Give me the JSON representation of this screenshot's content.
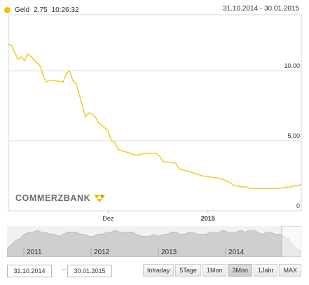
{
  "legend": {
    "series_label": "Geld",
    "value": "2.75",
    "time": "10:26:32",
    "color": "#f5c000"
  },
  "date_range_text": "31.10.2014 - 30.01.2015",
  "logo_text": "COMMERZBANK",
  "chart_data": {
    "type": "line",
    "title": "",
    "xlabel": "",
    "ylabel": "",
    "x_tick_labels": [
      "Dez",
      "2015"
    ],
    "y_tick_labels": [
      "0",
      "5,00",
      "10,00"
    ],
    "ylim": [
      0,
      14
    ],
    "grid": true,
    "series": [
      {
        "color": "#f5c000",
        "x": [
          "2014-10-31",
          "2014-11-01",
          "2014-11-03",
          "2014-11-04",
          "2014-11-05",
          "2014-11-06",
          "2014-11-07",
          "2014-11-10",
          "2014-11-11",
          "2014-11-12",
          "2014-11-13",
          "2014-11-14",
          "2014-11-17",
          "2014-11-18",
          "2014-11-19",
          "2014-11-20",
          "2014-11-21",
          "2014-11-24",
          "2014-11-25",
          "2014-11-26",
          "2014-11-27",
          "2014-11-28",
          "2014-12-01",
          "2014-12-02",
          "2014-12-03",
          "2014-12-04",
          "2014-12-05",
          "2014-12-08",
          "2014-12-09",
          "2014-12-10",
          "2014-12-11",
          "2014-12-12",
          "2014-12-15",
          "2014-12-16",
          "2014-12-17",
          "2014-12-18",
          "2014-12-19",
          "2014-12-22",
          "2014-12-23",
          "2014-12-29",
          "2014-12-30",
          "2015-01-02",
          "2015-01-05",
          "2015-01-06",
          "2015-01-07",
          "2015-01-08",
          "2015-01-09",
          "2015-01-12",
          "2015-01-13",
          "2015-01-14",
          "2015-01-15",
          "2015-01-16",
          "2015-01-19",
          "2015-01-20",
          "2015-01-21",
          "2015-01-22",
          "2015-01-23",
          "2015-01-26",
          "2015-01-27",
          "2015-01-28",
          "2015-01-29",
          "2015-01-30"
        ],
        "values": [
          11.9,
          11.8,
          10.8,
          11.0,
          10.7,
          11.2,
          11.0,
          10.3,
          9.5,
          9.2,
          9.3,
          9.3,
          9.2,
          9.8,
          10.0,
          9.3,
          9.1,
          6.7,
          7.0,
          6.9,
          6.7,
          6.3,
          5.7,
          5.0,
          4.9,
          4.4,
          4.3,
          4.1,
          4.0,
          4.0,
          4.0,
          4.1,
          4.1,
          4.1,
          3.9,
          3.5,
          3.5,
          3.4,
          3.0,
          2.6,
          2.5,
          2.4,
          2.3,
          2.2,
          2.1,
          2.0,
          1.8,
          1.7,
          1.7,
          1.6,
          1.6,
          1.6,
          1.6,
          1.6,
          1.6,
          1.6,
          1.6,
          1.7,
          1.7,
          1.8,
          1.8,
          1.9
        ]
      }
    ]
  },
  "navigator": {
    "year_labels": [
      "2011",
      "2012",
      "2013",
      "2014"
    ],
    "values": [
      4,
      6,
      8,
      9,
      11,
      12,
      12,
      13,
      12,
      12,
      11,
      11,
      10,
      11,
      12,
      12,
      12,
      11,
      11,
      10,
      10,
      11,
      11,
      12,
      12,
      13,
      12,
      12,
      12,
      12,
      11,
      10,
      10,
      10,
      11,
      10,
      11,
      11,
      12,
      12,
      11,
      11,
      12,
      12,
      11,
      11,
      11,
      12,
      12,
      12,
      13,
      12,
      12,
      12,
      13,
      12,
      13,
      13,
      12,
      11,
      12,
      12,
      11,
      11,
      10,
      9,
      6,
      4,
      3
    ]
  },
  "controls": {
    "date_from": "31.10.2014",
    "date_to": "30.01.2015",
    "range_buttons": [
      "Intraday",
      "5Tage",
      "1Mon",
      "3Mon",
      "1Jahr",
      "MAX"
    ],
    "active_button": "3Mon"
  }
}
